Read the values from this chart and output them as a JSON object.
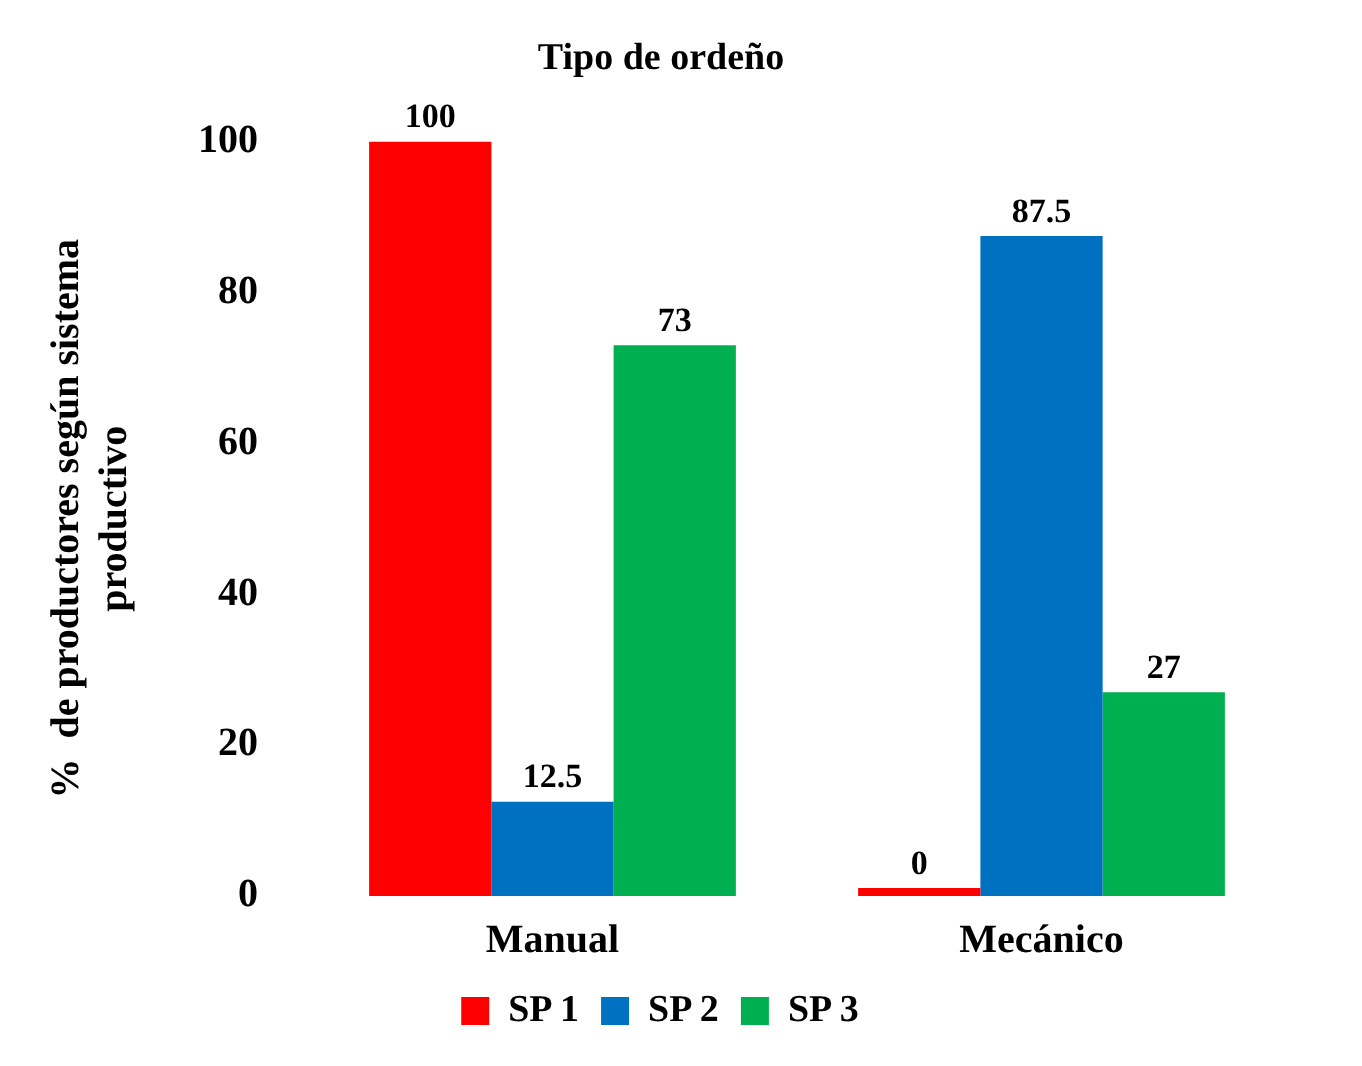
{
  "chart_data": {
    "type": "bar",
    "title": "Tipo de ordeño",
    "ylabel": "%  de productores según sistema productivo",
    "categories": [
      "Manual",
      "Mecánico"
    ],
    "series": [
      {
        "name": "SP 1",
        "color": "#ff0000",
        "values": [
          100,
          0
        ]
      },
      {
        "name": "SP 2",
        "color": "#0070c0",
        "values": [
          12.5,
          87.5
        ]
      },
      {
        "name": "SP 3",
        "color": "#00b050",
        "values": [
          73,
          27
        ]
      }
    ],
    "ylim": [
      0,
      100
    ],
    "yticks": [
      0,
      20,
      40,
      60,
      80,
      100
    ],
    "grid": false,
    "legend": "bottom",
    "data_labels": true
  }
}
